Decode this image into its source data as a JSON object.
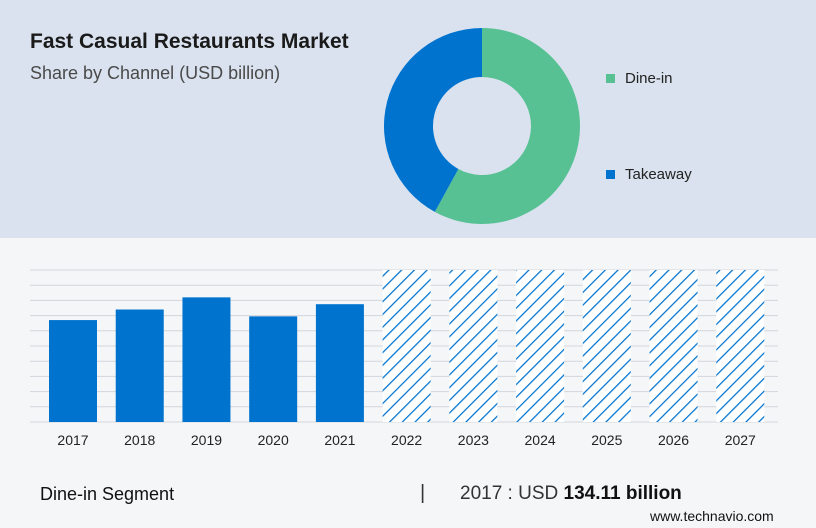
{
  "header": {
    "title": "Fast Casual Restaurants Market",
    "subtitle": "Share by Channel (USD billion)"
  },
  "legend": {
    "items": [
      {
        "label": "Dine-in",
        "color": "#58c194"
      },
      {
        "label": "Takeaway",
        "color": "#0073cf"
      }
    ]
  },
  "footer": {
    "segment": "Dine-in Segment",
    "separator": "|",
    "year_label": "2017 : USD",
    "value": "134.11 billion",
    "source": "www.technavio.com"
  },
  "chart_data": [
    {
      "type": "pie",
      "style": "donut",
      "labels": [
        "Dine-in",
        "Takeaway"
      ],
      "values": [
        58,
        42
      ],
      "colors": [
        "#58c194",
        "#0073cf"
      ]
    },
    {
      "type": "bar",
      "categories": [
        "2017",
        "2018",
        "2019",
        "2020",
        "2021",
        "2022",
        "2023",
        "2024",
        "2025",
        "2026",
        "2027"
      ],
      "values": [
        134.11,
        148,
        164,
        139,
        155,
        200,
        200,
        200,
        200,
        200,
        200
      ],
      "forecast_from_index": 5,
      "ylim": [
        0,
        200
      ],
      "grid": true,
      "color": "#0073cf",
      "forecast_style": "hatched"
    }
  ]
}
